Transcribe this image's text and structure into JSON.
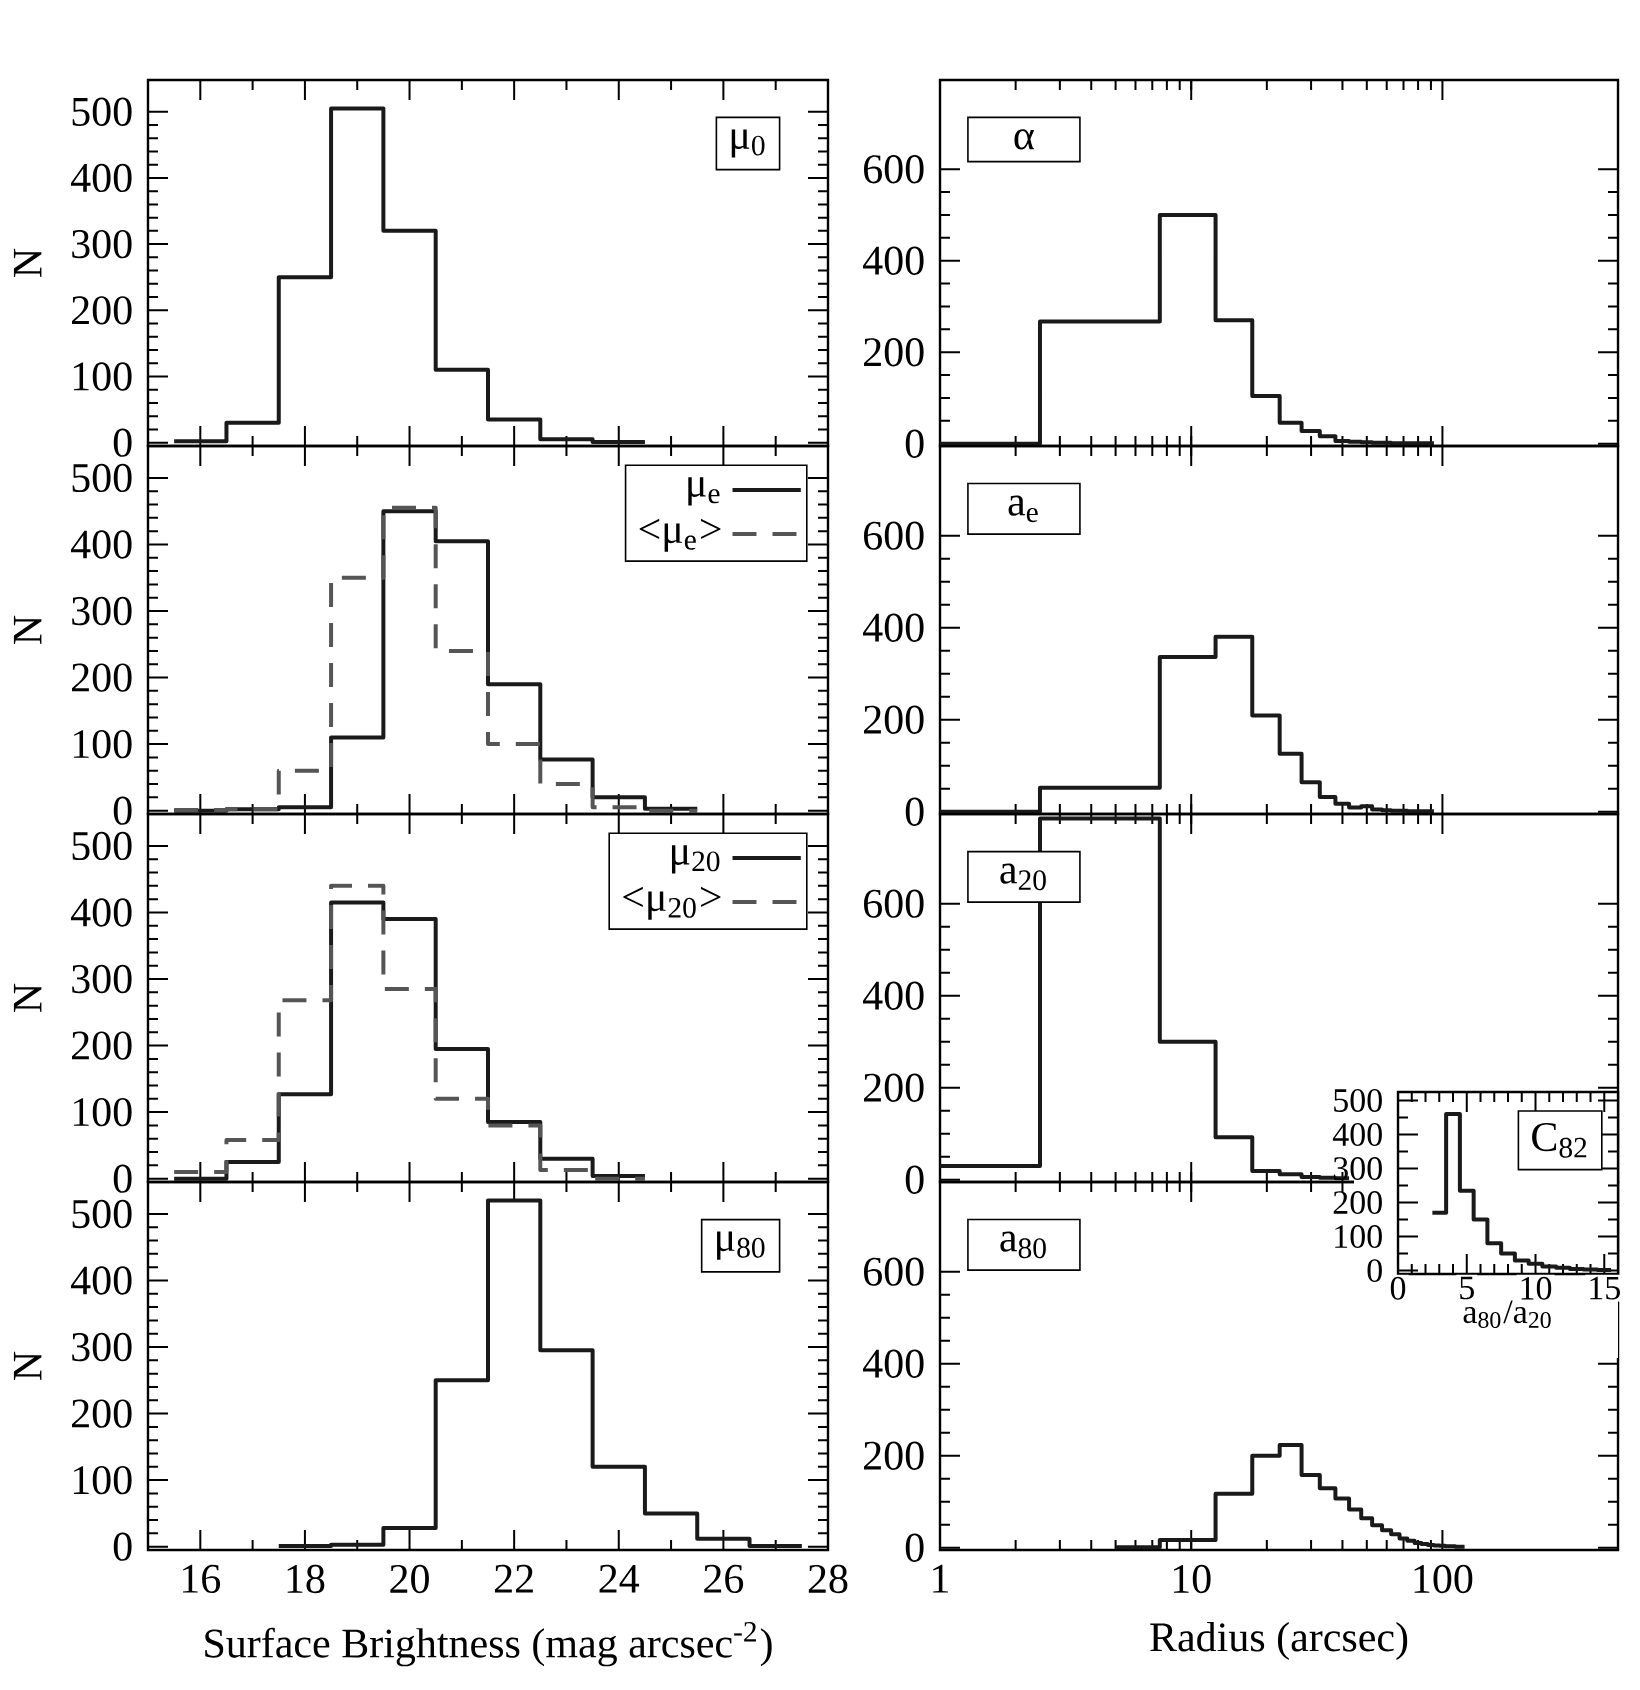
{
  "chart_data": [
    {
      "type": "histogram",
      "color": "#1a1a1a",
      "bins": [
        15.5,
        16.5,
        17.5,
        18.5,
        19.5,
        20.5,
        21.5,
        22.5,
        23.5,
        24.5
      ],
      "values": [
        2,
        30,
        250,
        505,
        320,
        110,
        35,
        5,
        1
      ],
      "xlim": [
        15,
        28
      ],
      "ylim": [
        -5,
        548
      ],
      "xticks": [
        16,
        18,
        20,
        22,
        24,
        26,
        28
      ],
      "yticks": [
        0,
        100,
        200,
        300,
        400,
        500
      ],
      "ylabel": "N",
      "annotations": [
        "μ$_{0}$"
      ],
      "tick_labels": "y"
    },
    {
      "type": "histogram",
      "bins": [
        15.5,
        16.5,
        17.5,
        18.5,
        19.5,
        20.5,
        21.5,
        22.5,
        23.5,
        24.5,
        25.5
      ],
      "series": [
        {
          "name": "μ$_{e}$",
          "color": "#1a1a1a",
          "line_style": "solid",
          "values": [
            0,
            2,
            5,
            110,
            450,
            405,
            190,
            77,
            20,
            3
          ]
        },
        {
          "name": "<μ$_{e}$>",
          "color": "#555555",
          "line_style": "dashed",
          "values": [
            1,
            2,
            60,
            350,
            455,
            240,
            100,
            40,
            5,
            0
          ]
        }
      ],
      "legend": "top right",
      "xlim": [
        15,
        28
      ],
      "ylim": [
        -5,
        548
      ],
      "xticks": [
        16,
        18,
        20,
        22,
        24,
        26,
        28
      ],
      "yticks": [
        0,
        100,
        200,
        300,
        400,
        500
      ],
      "ylabel": "N",
      "tick_labels": "y"
    },
    {
      "type": "histogram",
      "bins": [
        15.5,
        16.5,
        17.5,
        18.5,
        19.5,
        20.5,
        21.5,
        22.5,
        23.5,
        24.5
      ],
      "series": [
        {
          "name": "μ$_{20}$",
          "color": "#1a1a1a",
          "line_style": "solid",
          "values": [
            0,
            25,
            127,
            415,
            390,
            195,
            85,
            30,
            4
          ]
        },
        {
          "name": "<μ$_{20}$>",
          "color": "#555555",
          "line_style": "dashed",
          "values": [
            10,
            58,
            268,
            440,
            285,
            120,
            80,
            13,
            0
          ]
        }
      ],
      "legend": "top right",
      "xlim": [
        15,
        28
      ],
      "ylim": [
        -5,
        548
      ],
      "xticks": [
        16,
        18,
        20,
        22,
        24,
        26,
        28
      ],
      "yticks": [
        0,
        100,
        200,
        300,
        400,
        500
      ],
      "ylabel": "N",
      "tick_labels": "y"
    },
    {
      "type": "histogram",
      "color": "#1a1a1a",
      "bins": [
        17.5,
        18.5,
        19.5,
        20.5,
        21.5,
        22.5,
        23.5,
        24.5,
        25.5,
        26.5,
        27.5
      ],
      "values": [
        1,
        3,
        28,
        250,
        520,
        295,
        120,
        50,
        12,
        1
      ],
      "xlim": [
        15,
        28
      ],
      "ylim": [
        -5,
        548
      ],
      "xticks": [
        16,
        18,
        20,
        22,
        24,
        26,
        28
      ],
      "yticks": [
        0,
        100,
        200,
        300,
        400,
        500
      ],
      "ylabel": "N",
      "xlabel": "Surface Brightness (mag arcsec$^{-2}$)",
      "annotations": [
        "μ$_{80}$"
      ]
    },
    {
      "type": "histogram",
      "color": "#1a1a1a",
      "log": "x",
      "bins": [
        1,
        2.5,
        7.5,
        12.5,
        17.5,
        22.5,
        27.5,
        32.5,
        37.5,
        42.5,
        47.5,
        52.5,
        57.5,
        62.5,
        67.5,
        72.5,
        77.5,
        82.5,
        87.5,
        92.5
      ],
      "values": [
        0,
        267,
        500,
        270,
        104,
        46,
        28,
        16,
        6,
        4,
        3,
        2,
        2,
        1,
        1,
        1,
        1,
        1,
        1
      ],
      "xlim": [
        1,
        500
      ],
      "ylim": [
        -5,
        795
      ],
      "xticks": [
        1,
        10,
        100
      ],
      "yticks": [
        0,
        200,
        400,
        600
      ],
      "annotations": [
        "α"
      ],
      "tick_labels": "y"
    },
    {
      "type": "histogram",
      "color": "#1a1a1a",
      "log": "x",
      "bins": [
        1,
        2.5,
        7.5,
        12.5,
        17.5,
        22.5,
        27.5,
        32.5,
        37.5,
        42.5,
        47.5,
        52.5,
        57.5,
        62.5,
        67.5,
        72.5,
        77.5,
        82.5,
        87.5,
        92.5
      ],
      "values": [
        0,
        52,
        336,
        380,
        209,
        126,
        64,
        32,
        17,
        9,
        12,
        5,
        3,
        2,
        2,
        1,
        1,
        1,
        1
      ],
      "xlim": [
        1,
        500
      ],
      "ylim": [
        -5,
        795
      ],
      "xticks": [
        1,
        10,
        100
      ],
      "yticks": [
        0,
        200,
        400,
        600
      ],
      "annotations": [
        "a$_{e}$"
      ],
      "tick_labels": "y"
    },
    {
      "type": "histogram",
      "color": "#1a1a1a",
      "log": "x",
      "bins": [
        1,
        2.5,
        7.5,
        12.5,
        17.5,
        22.5,
        27.5,
        32.5,
        37.5,
        42.5
      ],
      "values": [
        30,
        785,
        300,
        92,
        19,
        12,
        6,
        4,
        3
      ],
      "xlim": [
        1,
        500
      ],
      "ylim": [
        -5,
        795
      ],
      "xticks": [
        1,
        10,
        100
      ],
      "yticks": [
        0,
        200,
        400,
        600
      ],
      "annotations": [
        "a$_{20}$"
      ],
      "tick_labels": "y"
    },
    {
      "type": "histogram",
      "color": "#1a1a1a",
      "log": "x",
      "bins": [
        5,
        7.5,
        12.5,
        17.5,
        22.5,
        27.5,
        32.5,
        37.5,
        42.5,
        47.5,
        52.5,
        57.5,
        62.5,
        67.5,
        72.5,
        77.5,
        82.5,
        87.5,
        92.5,
        97.5,
        102.5,
        107.5,
        112.5,
        117.5,
        122.5
      ],
      "values": [
        1,
        17,
        117,
        200,
        223,
        158,
        129,
        107,
        83,
        64,
        49,
        38,
        29,
        20,
        15,
        10,
        8,
        6,
        5,
        4,
        3,
        3,
        2,
        2
      ],
      "xlim": [
        1,
        500
      ],
      "ylim": [
        -5,
        795
      ],
      "xticks": [
        1,
        10,
        100
      ],
      "yticks": [
        0,
        200,
        400,
        600
      ],
      "xlabel": "Radius (arcsec)",
      "annotations": [
        "a$_{80}$"
      ]
    },
    {
      "type": "histogram",
      "color": "#1a1a1a",
      "bins": [
        2.5,
        3.5,
        4.5,
        5.5,
        6.5,
        7.5,
        8.5,
        9.5,
        10.5,
        11.5,
        12.5,
        13.5,
        14.5,
        15.5
      ],
      "values": [
        170,
        460,
        235,
        150,
        80,
        50,
        30,
        20,
        12,
        8,
        5,
        3,
        2
      ],
      "xlim": [
        0,
        16
      ],
      "ylim": [
        -10,
        525
      ],
      "xticks": [
        0,
        5,
        10,
        15
      ],
      "yticks": [
        0,
        100,
        200,
        300,
        400,
        500
      ],
      "xlabel": "a$_{80}$/a$_{20}$",
      "annotations": [
        "C$_{82}$"
      ]
    }
  ]
}
